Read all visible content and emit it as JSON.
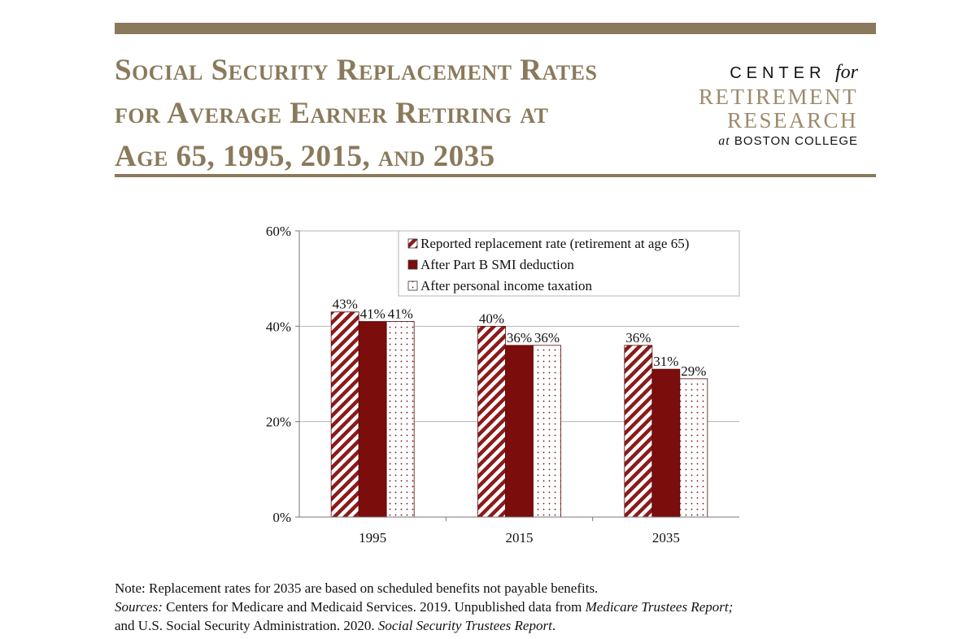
{
  "header": {
    "title_lines": [
      "Social Security Replacement Rates",
      "for Average Earner Retiring at",
      "Age 65, 1995, 2015, and 2035"
    ],
    "logo": {
      "line1": "CENTER",
      "line1_suffix": "for",
      "line2": "RETIREMENT",
      "line3": "RESEARCH",
      "line4_prefix": "at",
      "line4": "BOSTON COLLEGE"
    }
  },
  "colors": {
    "brand": "#8a7a5b",
    "bar_solid": "#7b0d0d",
    "bar_hatch": "#8b1a1a",
    "dots": "#7b0d0d"
  },
  "chart_data": {
    "type": "bar",
    "categories": [
      "1995",
      "2015",
      "2035"
    ],
    "series": [
      {
        "name": "Reported replacement rate (retirement at age 65)",
        "pattern": "hatch",
        "values": [
          43,
          40,
          36
        ],
        "labels": [
          "43%",
          "40%",
          "36%"
        ]
      },
      {
        "name": "After Part B SMI deduction",
        "pattern": "solid",
        "values": [
          41,
          36,
          31
        ],
        "labels": [
          "41%",
          "36%",
          "31%"
        ]
      },
      {
        "name": "After personal income taxation",
        "pattern": "dots",
        "values": [
          41,
          36,
          29
        ],
        "labels": [
          "41%",
          "36%",
          "29%"
        ]
      }
    ],
    "ylim": [
      0,
      60
    ],
    "yticks": [
      {
        "value": 0,
        "label": "0%"
      },
      {
        "value": 20,
        "label": "20%"
      },
      {
        "value": 40,
        "label": "40%"
      },
      {
        "value": 60,
        "label": "60%"
      }
    ],
    "grid": true,
    "legend": "top-right"
  },
  "notes": {
    "note": "Note: Replacement rates for 2035 are based on scheduled benefits not payable benefits.",
    "sources_label": "Sources:",
    "sources_part1": " Centers for Medicare and Medicaid Services. 2019. Unpublished data from ",
    "sources_italic1": "Medicare Trustees Report;",
    "sources_part2": "and U.S. Social Security Administration. 2020. ",
    "sources_italic2": "Social Security Trustees Report",
    "sources_end": "."
  }
}
